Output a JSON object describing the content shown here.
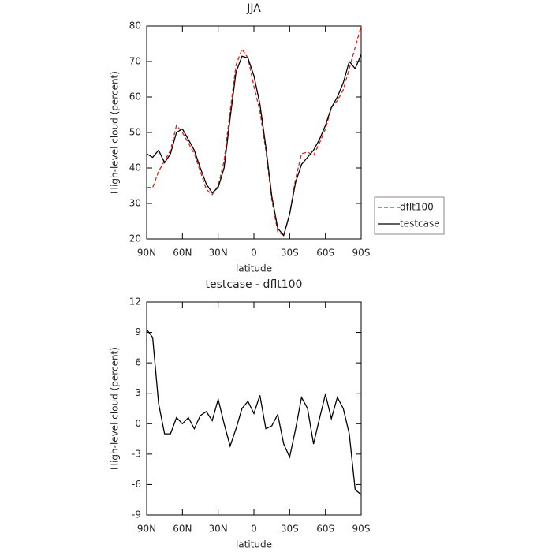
{
  "chart_data": [
    {
      "type": "line",
      "title": "JJA",
      "xlabel": "latitude",
      "ylabel": "High-level cloud (percent)",
      "x": [
        90,
        85,
        80,
        75,
        70,
        65,
        60,
        55,
        50,
        45,
        40,
        35,
        30,
        25,
        20,
        15,
        10,
        5,
        0,
        -5,
        -10,
        -15,
        -20,
        -25,
        -30,
        -35,
        -40,
        -45,
        -50,
        -55,
        -60,
        -65,
        -70,
        -75,
        -80,
        -85,
        -90
      ],
      "xlim": [
        90,
        -90
      ],
      "xticks": [
        {
          "value": 90,
          "label": "90N"
        },
        {
          "value": 60,
          "label": "60N"
        },
        {
          "value": 30,
          "label": "30N"
        },
        0,
        {
          "value": -30,
          "label": "30S"
        },
        {
          "value": -60,
          "label": "60S"
        },
        {
          "value": -90,
          "label": "90S"
        }
      ],
      "ylim": [
        20,
        80
      ],
      "yticks": [
        20,
        30,
        40,
        50,
        60,
        70,
        80
      ],
      "legend": "right",
      "series": [
        {
          "name": "dflt100",
          "color": "#e0201b",
          "dash": true,
          "values": [
            34.5,
            34.5,
            39,
            42,
            45,
            52,
            50,
            47,
            44,
            39,
            34,
            32.5,
            35,
            42,
            56,
            69,
            73.5,
            71,
            63,
            56,
            45,
            31,
            22,
            21,
            27,
            37,
            44,
            44.5,
            43.5,
            47,
            51,
            57,
            59,
            62,
            68,
            74,
            80
          ]
        },
        {
          "name": "testcase",
          "color": "#000000",
          "dash": false,
          "values": [
            44,
            43,
            45,
            41.5,
            44,
            50,
            51,
            48,
            45,
            40,
            35.5,
            33,
            34.5,
            40,
            54,
            67,
            71.5,
            71,
            66,
            58,
            46,
            32,
            23,
            21,
            27,
            36,
            41,
            43,
            45,
            48,
            52,
            57,
            60,
            64,
            70,
            68,
            72
          ]
        }
      ]
    },
    {
      "type": "line",
      "title": "testcase - dflt100",
      "xlabel": "latitude",
      "ylabel": "High-level cloud (percent)",
      "x": [
        90,
        85,
        80,
        75,
        70,
        65,
        60,
        55,
        50,
        45,
        40,
        35,
        30,
        25,
        20,
        15,
        10,
        5,
        0,
        -5,
        -10,
        -15,
        -20,
        -25,
        -30,
        -35,
        -40,
        -45,
        -50,
        -55,
        -60,
        -65,
        -70,
        -75,
        -80,
        -85,
        -90
      ],
      "xlim": [
        90,
        -90
      ],
      "xticks": [
        {
          "value": 90,
          "label": "90N"
        },
        {
          "value": 60,
          "label": "60N"
        },
        {
          "value": 30,
          "label": "30N"
        },
        0,
        {
          "value": -30,
          "label": "30S"
        },
        {
          "value": -60,
          "label": "60S"
        },
        {
          "value": -90,
          "label": "90S"
        }
      ],
      "ylim": [
        -9,
        12
      ],
      "yticks": [
        -9,
        -6,
        -3,
        0,
        3,
        6,
        9,
        12
      ],
      "series": [
        {
          "color": "#000000",
          "dash": false,
          "values": [
            9.3,
            8.5,
            2,
            -1,
            -1,
            0.6,
            0,
            0.6,
            -0.5,
            0.8,
            1.2,
            0.3,
            2.4,
            0,
            -2.2,
            -0.5,
            1.5,
            2.2,
            1,
            2.8,
            -0.5,
            -0.2,
            0.9,
            -2,
            -3.3,
            -0.5,
            2.6,
            1.5,
            -2,
            0.5,
            2.9,
            0.5,
            2.6,
            1.5,
            -1,
            -6.5,
            -7
          ]
        }
      ]
    }
  ]
}
